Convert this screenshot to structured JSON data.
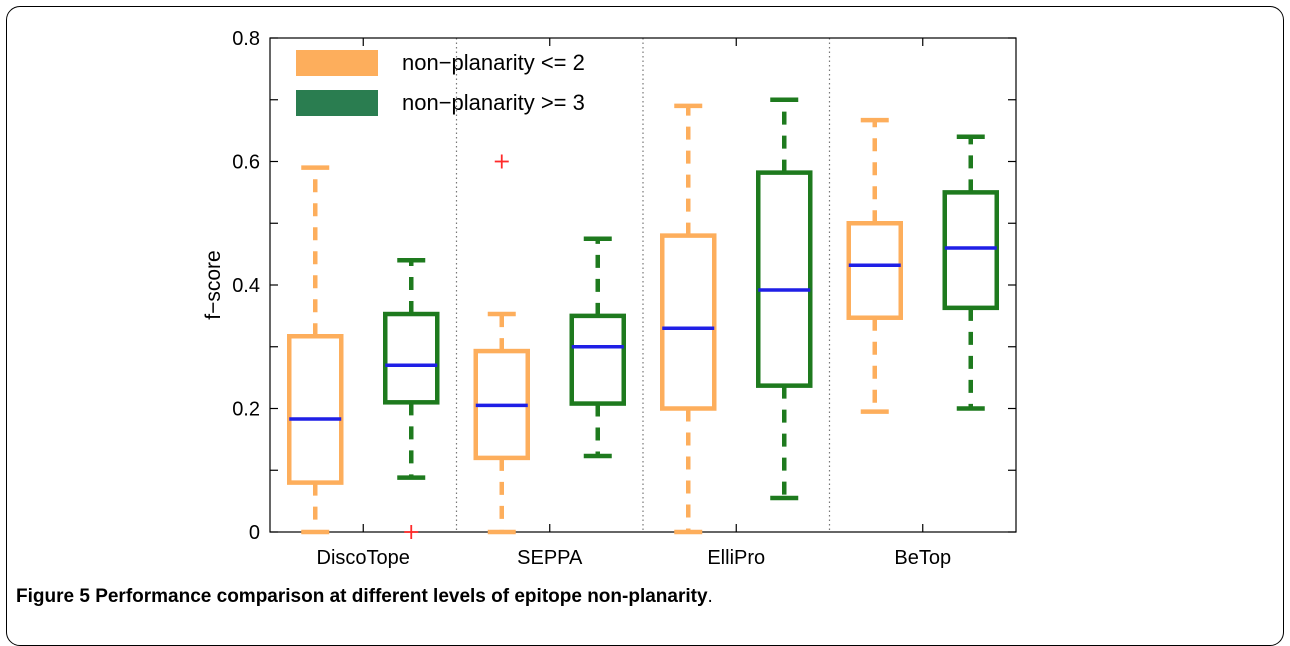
{
  "chart_data": {
    "type": "box",
    "ylabel": "f−score",
    "xlabel": "",
    "ylim": [
      0,
      0.8
    ],
    "yticks": [
      "0",
      "0.2",
      "0.4",
      "0.6",
      "0.8"
    ],
    "categories": [
      "DiscoTope",
      "SEPPA",
      "ElliPro",
      "BeTop"
    ],
    "grid": false,
    "legend_position": "top-left",
    "median_color": "#1f1fe6",
    "outlier_color": "#ff2a2a",
    "series": [
      {
        "name": "non−planarity <= 2",
        "color": "#fdae5c",
        "boxes": [
          {
            "whisker_low": 0.0,
            "q1": 0.08,
            "median": 0.183,
            "q3": 0.317,
            "whisker_high": 0.59,
            "outliers": []
          },
          {
            "whisker_low": 0.0,
            "q1": 0.12,
            "median": 0.205,
            "q3": 0.293,
            "whisker_high": 0.353,
            "outliers": [
              0.6
            ]
          },
          {
            "whisker_low": 0.0,
            "q1": 0.2,
            "median": 0.33,
            "q3": 0.48,
            "whisker_high": 0.69,
            "outliers": []
          },
          {
            "whisker_low": 0.195,
            "q1": 0.347,
            "median": 0.432,
            "q3": 0.5,
            "whisker_high": 0.667,
            "outliers": []
          }
        ]
      },
      {
        "name": "non−planarity >= 3",
        "color": "#1e7a1e",
        "legend_color": "#2a7d50",
        "boxes": [
          {
            "whisker_low": 0.088,
            "q1": 0.21,
            "median": 0.27,
            "q3": 0.353,
            "whisker_high": 0.44,
            "outliers": [
              0.0
            ]
          },
          {
            "whisker_low": 0.123,
            "q1": 0.208,
            "median": 0.3,
            "q3": 0.35,
            "whisker_high": 0.475,
            "outliers": []
          },
          {
            "whisker_low": 0.055,
            "q1": 0.237,
            "median": 0.392,
            "q3": 0.582,
            "whisker_high": 0.7,
            "outliers": []
          },
          {
            "whisker_low": 0.2,
            "q1": 0.363,
            "median": 0.46,
            "q3": 0.55,
            "whisker_high": 0.64,
            "outliers": []
          }
        ]
      }
    ]
  },
  "caption": {
    "label": "Figure 5",
    "title": "Performance comparison at different levels of epitope non-planarity",
    "end": "."
  }
}
